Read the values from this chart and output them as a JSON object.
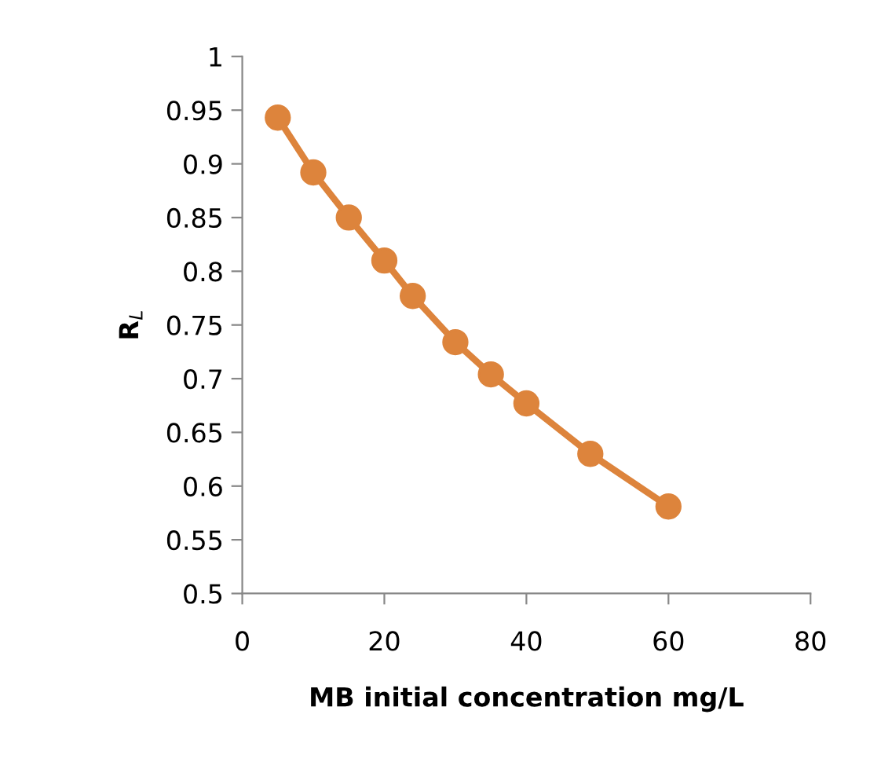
{
  "chart_data": {
    "type": "line",
    "xlabel": "MB initial concentration mg/L",
    "ylabel": "R$_{L}$",
    "x": [
      5,
      10,
      15,
      20,
      24,
      30,
      35,
      40,
      49,
      60
    ],
    "series": [
      {
        "color": "#dd843c",
        "values": [
          0.943,
          0.892,
          0.85,
          0.81,
          0.777,
          0.734,
          0.704,
          0.677,
          0.63,
          0.581
        ]
      }
    ],
    "xlim": [
      0,
      80
    ],
    "xticks": [
      0,
      20,
      40,
      60,
      80
    ],
    "ylim": [
      0.5,
      1
    ],
    "yticks": [
      0.5,
      0.55,
      0.6,
      0.65,
      0.7,
      0.75,
      0.8,
      0.85,
      0.9,
      0.95,
      1
    ],
    "marker": "circle",
    "line_style": "solid",
    "grid": false
  }
}
